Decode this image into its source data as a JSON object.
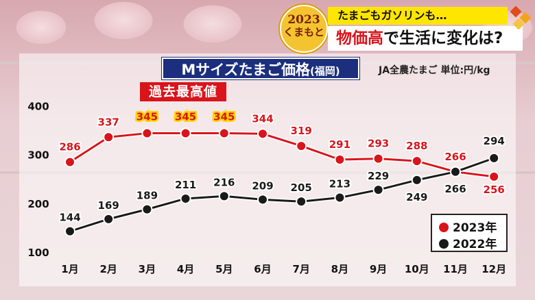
{
  "header": {
    "logo_year": "2023",
    "logo_name": "くまもと",
    "line1": "たまごもガソリンも…",
    "line2_red": "物価高",
    "line2_rest": "で生活に変化は?"
  },
  "colors": {
    "series_2023": "#d9141b",
    "series_2022": "#1a1a1a",
    "title_bg": "#1b2f7e",
    "record_label": "#d9141b"
  },
  "chart_data": {
    "type": "line",
    "title": "Mサイズたまご価格",
    "title_suffix": "(福岡)",
    "source": "JA全農たまご 単位:円/kg",
    "annotation": "過去最高値",
    "categories": [
      "1月",
      "2月",
      "3月",
      "4月",
      "5月",
      "6月",
      "7月",
      "8月",
      "9月",
      "10月",
      "11月",
      "12月"
    ],
    "yticks": [
      100,
      200,
      300,
      400
    ],
    "ylim": [
      100,
      420
    ],
    "grid": false,
    "legend_position": "bottom-right",
    "series": [
      {
        "name": "2023年",
        "values": [
          286,
          337,
          345,
          345,
          345,
          344,
          319,
          291,
          293,
          288,
          266,
          256
        ]
      },
      {
        "name": "2022年",
        "values": [
          144,
          169,
          189,
          211,
          216,
          209,
          205,
          213,
          229,
          249,
          266,
          294
        ]
      }
    ],
    "highlight_values": [
      345
    ]
  }
}
